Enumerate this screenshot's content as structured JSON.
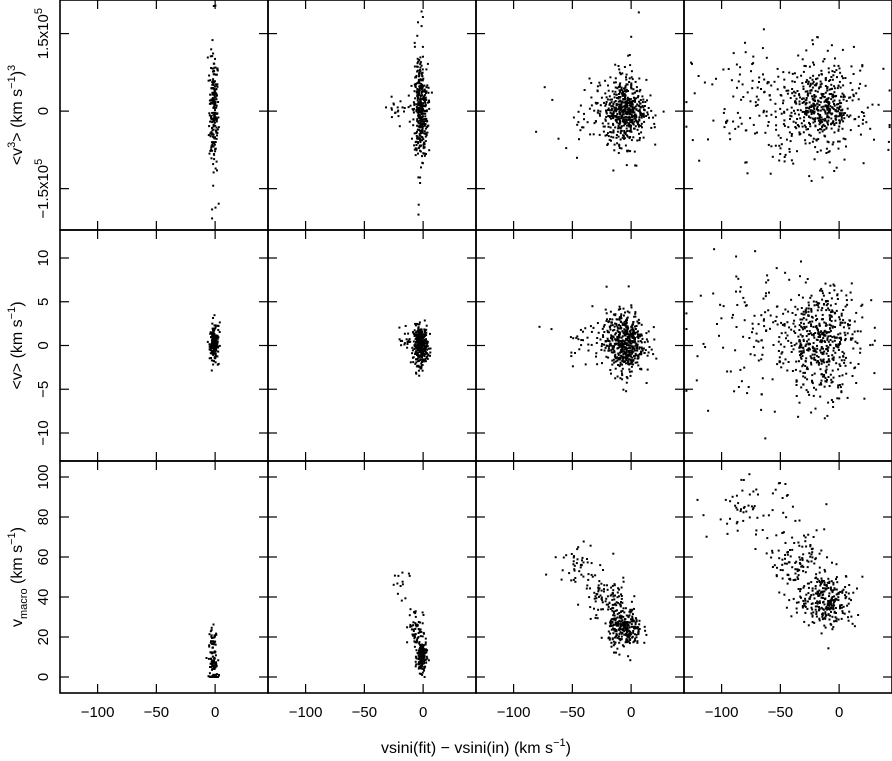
{
  "chart_data": {
    "type": "scatter",
    "layout": "3 rows x 4 columns grid of scatter panels, shared axes",
    "xlabel": "vsini(fit) − vsini(in)    (km s",
    "xlabel_sup": "−1",
    "xlabel_end": ")",
    "x_ticks": [
      -100,
      -50,
      0
    ],
    "x_tick_labels": [
      "−100",
      "−50",
      "0"
    ],
    "xlim": [
      -132,
      45
    ],
    "grid": false,
    "rows": [
      {
        "id": "v3",
        "ylabel": {
          "pre": "<v",
          "sup1": "3",
          "mid": "> (km s",
          "sup2": "−1",
          "post": ")",
          "sup3": "3"
        },
        "ylim": [
          -230000,
          215000
        ],
        "y_ticks": [
          -150000,
          0,
          150000
        ],
        "y_tick_labels": [
          {
            "base": "−1.5x10",
            "exp": "5"
          },
          {
            "base": "0",
            "exp": ""
          },
          {
            "base": "1.5x10",
            "exp": "5"
          }
        ],
        "scale": 10000
      },
      {
        "id": "v",
        "ylabel": {
          "pre": "<v> (km s",
          "sup": "−1",
          "post": ")"
        },
        "ylim": [
          -13.2,
          13.2
        ],
        "y_ticks": [
          -10,
          -5,
          0,
          5,
          10
        ],
        "y_tick_labels": [
          "−10",
          "−5",
          "0",
          "5",
          "10"
        ],
        "scale": 1
      },
      {
        "id": "vmacro",
        "ylabel": {
          "pre": "v",
          "sub": "macro",
          "mid": " (km s",
          "sup": "−1",
          "post": ")"
        },
        "ylim": [
          -8,
          108
        ],
        "y_ticks": [
          0,
          20,
          40,
          60,
          80,
          100
        ],
        "y_tick_labels": [
          "0",
          "20",
          "40",
          "60",
          "80",
          "100"
        ],
        "scale": 1
      }
    ],
    "columns": [
      {
        "panels": [
          {
            "clusters": [
              {
                "cx": -1,
                "cy": 0,
                "sx": 2,
                "sy": 5.5,
                "n": 170
              },
              {
                "cx": -1,
                "cy": 0,
                "sx": 1.5,
                "sy": 9,
                "n": 35
              }
            ]
          },
          {
            "clusters": [
              {
                "cx": -1,
                "cy": 0.2,
                "sx": 1.8,
                "sy": 0.9,
                "n": 170
              },
              {
                "cx": 0,
                "cy": 0.3,
                "sx": 2.5,
                "sy": 1.5,
                "n": 20
              }
            ]
          },
          {
            "clusters": [
              {
                "cx": -2,
                "cy": 14,
                "sx": 2,
                "sy": 5,
                "n": 45
              },
              {
                "cx": -1,
                "cy": 7,
                "sx": 1.5,
                "sy": 2,
                "n": 40
              },
              {
                "cx": 0,
                "cy": 0.5,
                "sx": 2.5,
                "sy": 0.4,
                "n": 25
              }
            ]
          }
        ]
      },
      {
        "panels": [
          {
            "clusters": [
              {
                "cx": -2,
                "cy": 0,
                "sx": 3,
                "sy": 4.5,
                "n": 320
              },
              {
                "cx": -3,
                "cy": 0,
                "sx": 2,
                "sy": 9,
                "n": 60
              },
              {
                "cx": -20,
                "cy": 0,
                "sx": 8,
                "sy": 1.8,
                "n": 22
              }
            ]
          },
          {
            "clusters": [
              {
                "cx": -2,
                "cy": 0,
                "sx": 3,
                "sy": 1.1,
                "n": 330
              },
              {
                "cx": -12,
                "cy": 0.6,
                "sx": 7,
                "sy": 0.6,
                "n": 28
              }
            ]
          },
          {
            "clusters": [
              {
                "cx": -1,
                "cy": 10,
                "sx": 2,
                "sy": 4,
                "n": 160
              },
              {
                "cx": -6,
                "cy": 25,
                "sx": 3,
                "sy": 5,
                "n": 55
              },
              {
                "cx": -22,
                "cy": 42,
                "sx": 5,
                "sy": 8,
                "n": 14
              }
            ]
          }
        ]
      },
      {
        "panels": [
          {
            "clusters": [
              {
                "cx": -5,
                "cy": 0,
                "sx": 9,
                "sy": 3,
                "n": 430
              },
              {
                "cx": -25,
                "cy": 0,
                "sx": 20,
                "sy": 3,
                "n": 80
              },
              {
                "cx": -3,
                "cy": 0,
                "sx": 6,
                "sy": 7,
                "n": 60
              }
            ]
          },
          {
            "clusters": [
              {
                "cx": -5,
                "cy": 0.3,
                "sx": 8,
                "sy": 1.8,
                "n": 470
              },
              {
                "cx": -25,
                "cy": 0.8,
                "sx": 18,
                "sy": 1.5,
                "n": 90
              }
            ]
          },
          {
            "clusters": [
              {
                "cx": -5,
                "cy": 24,
                "sx": 7,
                "sy": 5,
                "n": 260
              },
              {
                "cx": -20,
                "cy": 38,
                "sx": 10,
                "sy": 6,
                "n": 100
              },
              {
                "cx": -45,
                "cy": 58,
                "sx": 10,
                "sy": 6,
                "n": 45
              }
            ]
          }
        ]
      },
      {
        "panels": [
          {
            "clusters": [
              {
                "cx": -15,
                "cy": 0.5,
                "sx": 14,
                "sy": 3.5,
                "n": 420
              },
              {
                "cx": -45,
                "cy": 1,
                "sx": 38,
                "sy": 6,
                "n": 230
              }
            ]
          },
          {
            "clusters": [
              {
                "cx": -15,
                "cy": 0.5,
                "sx": 14,
                "sy": 3,
                "n": 430
              },
              {
                "cx": -50,
                "cy": 1,
                "sx": 38,
                "sy": 3.5,
                "n": 200
              }
            ]
          },
          {
            "clusters": [
              {
                "cx": -10,
                "cy": 38,
                "sx": 12,
                "sy": 7,
                "n": 260
              },
              {
                "cx": -35,
                "cy": 57,
                "sx": 12,
                "sy": 8,
                "n": 120
              },
              {
                "cx": -75,
                "cy": 84,
                "sx": 18,
                "sy": 7,
                "n": 60
              }
            ]
          }
        ]
      }
    ]
  }
}
